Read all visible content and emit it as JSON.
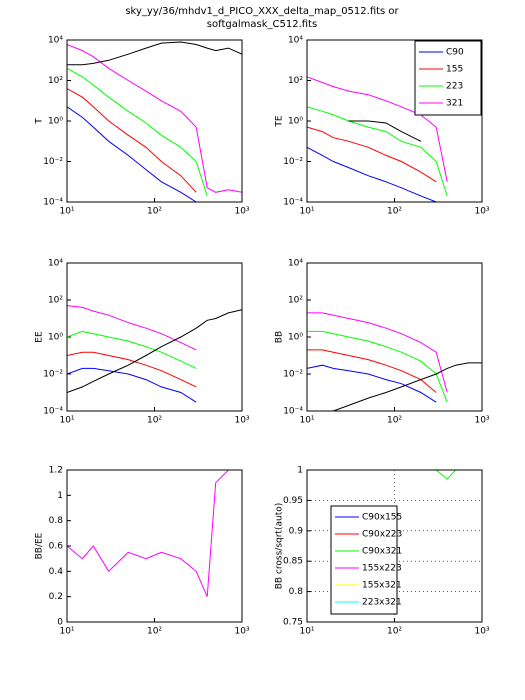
{
  "title": [
    "sky_yy/36/mhdv1_d_PICO_XXX_delta_map_0512.fits or",
    "softgalmask_C512.fits"
  ],
  "chart_data": [
    {
      "type": "line",
      "ylabel": "T",
      "xlog": true,
      "ylog": true,
      "xlim": [
        10,
        1000
      ],
      "ylim": [
        0.0001,
        10000
      ],
      "xticks": [
        {
          "value": 10,
          "label": "10¹"
        },
        {
          "value": 100,
          "label": "10²"
        },
        {
          "value": 1000,
          "label": "10³"
        }
      ],
      "yticks": [
        {
          "value": 0.0001,
          "label": "10⁻⁴"
        },
        {
          "value": 0.01,
          "label": "10⁻²"
        },
        {
          "value": 1,
          "label": "10⁰"
        },
        {
          "value": 100,
          "label": "10²"
        },
        {
          "value": 10000,
          "label": "10⁴"
        }
      ],
      "x": [
        10,
        15,
        20,
        30,
        50,
        80,
        120,
        200,
        300,
        400,
        500,
        700,
        1000
      ],
      "series": [
        {
          "color": "#0000ff",
          "values": [
            5,
            1.5,
            0.5,
            0.1,
            0.02,
            0.004,
            0.001,
            0.0003,
            0.0001,
            null,
            null,
            null,
            null
          ]
        },
        {
          "color": "#ff0000",
          "values": [
            40,
            15,
            5,
            1,
            0.2,
            0.05,
            0.01,
            0.002,
            0.0003,
            null,
            null,
            null,
            null
          ]
        },
        {
          "color": "#00ff00",
          "values": [
            400,
            150,
            60,
            15,
            3,
            0.8,
            0.2,
            0.05,
            0.01,
            0.0002,
            null,
            null,
            null
          ]
        },
        {
          "color": "#ff00ff",
          "values": [
            6000,
            3000,
            1500,
            400,
            100,
            30,
            10,
            3,
            0.5,
            0.0005,
            0.0003,
            0.0004,
            0.0003
          ]
        },
        {
          "color": "#000000",
          "values": [
            600,
            600,
            700,
            1000,
            2000,
            4000,
            7000,
            8000,
            6000,
            4000,
            3000,
            4000,
            2000
          ]
        }
      ]
    },
    {
      "type": "line",
      "ylabel": "TE",
      "xlog": true,
      "ylog": true,
      "xlim": [
        10,
        1000
      ],
      "ylim": [
        0.0001,
        10000
      ],
      "xticks": [
        {
          "value": 10,
          "label": "10¹"
        },
        {
          "value": 100,
          "label": "10²"
        },
        {
          "value": 1000,
          "label": "10³"
        }
      ],
      "yticks": [
        {
          "value": 0.0001,
          "label": "10⁻⁴"
        },
        {
          "value": 0.01,
          "label": "10⁻²"
        },
        {
          "value": 1,
          "label": "10⁰"
        },
        {
          "value": 100,
          "label": "10²"
        },
        {
          "value": 10000,
          "label": "10⁴"
        }
      ],
      "legend": "upper right",
      "x": [
        10,
        15,
        20,
        30,
        50,
        80,
        120,
        200,
        300,
        400,
        500,
        700,
        1000
      ],
      "series": [
        {
          "name": "C90",
          "color": "#0000ff",
          "values": [
            0.05,
            0.02,
            0.01,
            0.005,
            0.002,
            0.001,
            0.0005,
            0.0002,
            0.0001,
            null,
            null,
            null,
            null
          ]
        },
        {
          "name": "155",
          "color": "#ff0000",
          "values": [
            0.5,
            0.3,
            0.15,
            0.1,
            0.05,
            0.02,
            0.01,
            0.003,
            0.001,
            null,
            null,
            null,
            null
          ]
        },
        {
          "name": "223",
          "color": "#00ff00",
          "values": [
            5,
            3,
            2,
            1,
            0.5,
            0.3,
            0.1,
            0.05,
            0.01,
            0.0002,
            null,
            null,
            null
          ]
        },
        {
          "name": "321",
          "color": "#ff00ff",
          "values": [
            150,
            80,
            50,
            30,
            20,
            10,
            5,
            2,
            0.5,
            0.001,
            null,
            null,
            null
          ]
        },
        {
          "color": "#000000",
          "values": [
            null,
            null,
            null,
            1,
            1,
            0.8,
            0.3,
            0.1,
            null,
            null,
            null,
            null,
            null
          ]
        }
      ]
    },
    {
      "type": "line",
      "ylabel": "EE",
      "xlog": true,
      "ylog": true,
      "xlim": [
        10,
        1000
      ],
      "ylim": [
        0.0001,
        10000
      ],
      "xticks": [
        {
          "value": 10,
          "label": "10¹"
        },
        {
          "value": 100,
          "label": "10²"
        },
        {
          "value": 1000,
          "label": "10³"
        }
      ],
      "yticks": [
        {
          "value": 0.0001,
          "label": "10⁻⁴"
        },
        {
          "value": 0.01,
          "label": "10⁻²"
        },
        {
          "value": 1,
          "label": "10⁰"
        },
        {
          "value": 100,
          "label": "10²"
        },
        {
          "value": 10000,
          "label": "10⁴"
        }
      ],
      "x": [
        10,
        15,
        20,
        30,
        50,
        80,
        120,
        200,
        300,
        400,
        500,
        700,
        1000
      ],
      "series": [
        {
          "color": "#0000ff",
          "values": [
            0.01,
            0.02,
            0.02,
            0.015,
            0.01,
            0.005,
            0.002,
            0.001,
            0.0003,
            null,
            null,
            null,
            null
          ]
        },
        {
          "color": "#ff0000",
          "values": [
            0.1,
            0.15,
            0.15,
            0.1,
            0.06,
            0.03,
            0.015,
            0.005,
            0.002,
            null,
            null,
            null,
            null
          ]
        },
        {
          "color": "#00ff00",
          "values": [
            1,
            2,
            1.5,
            1,
            0.6,
            0.3,
            0.15,
            0.05,
            0.02,
            null,
            null,
            null,
            null
          ]
        },
        {
          "color": "#ff00ff",
          "values": [
            50,
            40,
            25,
            15,
            6,
            3,
            1.5,
            0.5,
            0.2,
            null,
            null,
            null,
            null
          ]
        },
        {
          "color": "#000000",
          "values": [
            0.001,
            0.002,
            0.004,
            0.01,
            0.03,
            0.1,
            0.3,
            1,
            3,
            8,
            10,
            20,
            30
          ]
        }
      ]
    },
    {
      "type": "line",
      "ylabel": "BB",
      "xlog": true,
      "ylog": true,
      "xlim": [
        10,
        1000
      ],
      "ylim": [
        0.0001,
        10000
      ],
      "xticks": [
        {
          "value": 10,
          "label": "10¹"
        },
        {
          "value": 100,
          "label": "10²"
        },
        {
          "value": 1000,
          "label": "10³"
        }
      ],
      "yticks": [
        {
          "value": 0.0001,
          "label": "10⁻⁴"
        },
        {
          "value": 0.01,
          "label": "10⁻²"
        },
        {
          "value": 1,
          "label": "10⁰"
        },
        {
          "value": 100,
          "label": "10²"
        },
        {
          "value": 10000,
          "label": "10⁴"
        }
      ],
      "x": [
        10,
        15,
        20,
        30,
        50,
        80,
        120,
        200,
        300,
        400,
        500,
        700,
        1000
      ],
      "series": [
        {
          "color": "#0000ff",
          "values": [
            0.02,
            0.03,
            0.02,
            0.015,
            0.01,
            0.005,
            0.003,
            0.001,
            0.0003,
            null,
            null,
            null,
            null
          ]
        },
        {
          "color": "#ff0000",
          "values": [
            0.2,
            0.2,
            0.15,
            0.1,
            0.06,
            0.03,
            0.015,
            0.005,
            0.001,
            null,
            null,
            null,
            null
          ]
        },
        {
          "color": "#00ff00",
          "values": [
            2,
            2,
            1.5,
            1,
            0.6,
            0.3,
            0.15,
            0.05,
            0.01,
            0.0003,
            null,
            null,
            null
          ]
        },
        {
          "color": "#ff00ff",
          "values": [
            20,
            20,
            15,
            10,
            6,
            3,
            1.5,
            0.5,
            0.15,
            0.001,
            null,
            null,
            null
          ]
        },
        {
          "color": "#000000",
          "values": [
            null,
            null,
            0.0001,
            0.0002,
            0.0005,
            0.001,
            0.002,
            0.005,
            0.01,
            0.02,
            0.03,
            0.04,
            0.04
          ]
        }
      ]
    },
    {
      "type": "line",
      "ylabel": "BB/EE",
      "xlog": true,
      "ylog": false,
      "xlim": [
        10,
        1000
      ],
      "ylim": [
        0,
        1.2
      ],
      "xticks": [
        {
          "value": 10,
          "label": "10¹"
        },
        {
          "value": 100,
          "label": "10²"
        },
        {
          "value": 1000,
          "label": "10³"
        }
      ],
      "yticks": [
        0,
        0.2,
        0.4,
        0.6,
        0.8,
        1,
        1.2
      ],
      "x": [
        10,
        15,
        20,
        30,
        50,
        80,
        120,
        200,
        300,
        400,
        500,
        700,
        1000
      ],
      "series": [
        {
          "color": "#ff00ff",
          "values": [
            0.6,
            0.5,
            0.6,
            0.4,
            0.55,
            0.5,
            0.55,
            0.5,
            0.4,
            0.2,
            1.1,
            1.2,
            1.2
          ]
        }
      ]
    },
    {
      "type": "line",
      "ylabel": "BB cross/sqrt(auto)",
      "xlog": true,
      "ylog": false,
      "xlim": [
        10,
        1000
      ],
      "ylim": [
        0.75,
        1
      ],
      "xticks": [
        {
          "value": 10,
          "label": "10¹"
        },
        {
          "value": 100,
          "label": "10²"
        },
        {
          "value": 1000,
          "label": "10³"
        }
      ],
      "yticks": [
        0.75,
        0.8,
        0.85,
        0.9,
        0.95,
        1
      ],
      "grid": true,
      "legend": "lower left",
      "x": [
        10,
        15,
        20,
        30,
        50,
        80,
        120,
        200,
        300,
        400,
        500,
        700,
        1000
      ],
      "series": [
        {
          "name": "C90x155",
          "color": "#0000ff",
          "values": [
            1,
            1,
            1,
            1,
            1,
            1,
            1,
            1,
            1,
            1,
            1,
            1,
            1
          ]
        },
        {
          "name": "C90x223",
          "color": "#ff0000",
          "values": [
            1,
            1,
            1,
            1,
            1,
            1,
            1,
            1,
            1,
            1,
            1,
            1,
            1
          ]
        },
        {
          "name": "C90x321",
          "color": "#00ff00",
          "values": [
            1,
            1,
            1,
            1,
            1,
            1,
            1,
            1,
            1,
            0.985,
            1,
            1,
            1
          ]
        },
        {
          "name": "155x223",
          "color": "#ff00ff",
          "values": [
            1,
            1,
            1,
            1,
            1,
            1,
            1,
            1,
            1,
            1,
            1,
            1,
            1
          ]
        },
        {
          "name": "155x321",
          "color": "#ffff00",
          "values": [
            1,
            1,
            1,
            1,
            1,
            1,
            1,
            1,
            1,
            1,
            1,
            1,
            1
          ]
        },
        {
          "name": "223x321",
          "color": "#00ffff",
          "values": [
            1,
            1,
            1,
            1,
            1,
            1,
            1,
            1,
            1,
            1,
            1,
            1,
            1
          ]
        }
      ]
    }
  ]
}
